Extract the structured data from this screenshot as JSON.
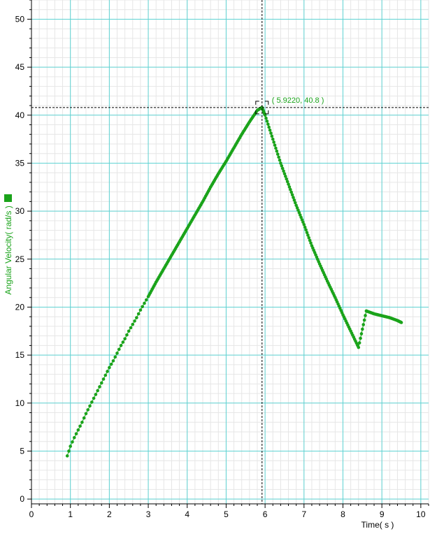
{
  "colors": {
    "series": "#1aa31a",
    "grid_major": "#5fd3d3",
    "grid_minor": "#e6e6e6",
    "axis": "#000000",
    "cursor": "#000000"
  },
  "chart_data": {
    "type": "scatter",
    "title": "",
    "xlabel": "Time( s )",
    "ylabel": "Angular Velocity( rad/s )",
    "xlim": [
      0,
      10.2
    ],
    "ylim": [
      -0.5,
      52
    ],
    "xticks": [
      "0",
      "1",
      "2",
      "3",
      "4",
      "5",
      "6",
      "7",
      "8",
      "9",
      "10"
    ],
    "yticks": [
      "0",
      "5",
      "10",
      "15",
      "20",
      "25",
      "30",
      "35",
      "40",
      "45",
      "50"
    ],
    "grid": true,
    "legend": "left-marker",
    "cursor": {
      "x": 5.922,
      "y": 40.8,
      "label": "( 5.9220, 40.8 )"
    },
    "series": [
      {
        "name": "",
        "points": [
          [
            0.92,
            4.5
          ],
          [
            1.0,
            5.5
          ],
          [
            1.1,
            6.4
          ],
          [
            1.2,
            7.2
          ],
          [
            1.3,
            8.0
          ],
          [
            1.4,
            8.9
          ],
          [
            1.5,
            9.7
          ],
          [
            1.6,
            10.5
          ],
          [
            1.7,
            11.3
          ],
          [
            1.8,
            12.1
          ],
          [
            1.9,
            12.9
          ],
          [
            2.0,
            13.7
          ],
          [
            2.1,
            14.4
          ],
          [
            2.2,
            15.2
          ],
          [
            2.3,
            16.0
          ],
          [
            2.4,
            16.7
          ],
          [
            2.5,
            17.5
          ],
          [
            2.6,
            18.2
          ],
          [
            2.7,
            18.9
          ],
          [
            2.8,
            19.7
          ],
          [
            2.9,
            20.4
          ],
          [
            3.0,
            21.1
          ],
          [
            3.2,
            22.6
          ],
          [
            3.4,
            24.0
          ],
          [
            3.6,
            25.4
          ],
          [
            3.8,
            26.8
          ],
          [
            4.0,
            28.2
          ],
          [
            4.2,
            29.6
          ],
          [
            4.4,
            31.0
          ],
          [
            4.6,
            32.5
          ],
          [
            4.8,
            33.9
          ],
          [
            5.0,
            35.2
          ],
          [
            5.2,
            36.6
          ],
          [
            5.4,
            38.0
          ],
          [
            5.6,
            39.3
          ],
          [
            5.8,
            40.5
          ],
          [
            5.92,
            40.8
          ],
          [
            6.0,
            40.0
          ],
          [
            6.2,
            37.5
          ],
          [
            6.4,
            35.0
          ],
          [
            6.6,
            32.8
          ],
          [
            6.8,
            30.6
          ],
          [
            7.0,
            28.6
          ],
          [
            7.2,
            26.4
          ],
          [
            7.4,
            24.5
          ],
          [
            7.6,
            22.7
          ],
          [
            7.8,
            21.0
          ],
          [
            8.0,
            19.2
          ],
          [
            8.2,
            17.5
          ],
          [
            8.4,
            15.8
          ],
          [
            8.6,
            19.6
          ],
          [
            8.8,
            19.3
          ],
          [
            9.0,
            19.1
          ],
          [
            9.2,
            18.9
          ],
          [
            9.4,
            18.6
          ],
          [
            9.5,
            18.4
          ]
        ]
      }
    ]
  }
}
